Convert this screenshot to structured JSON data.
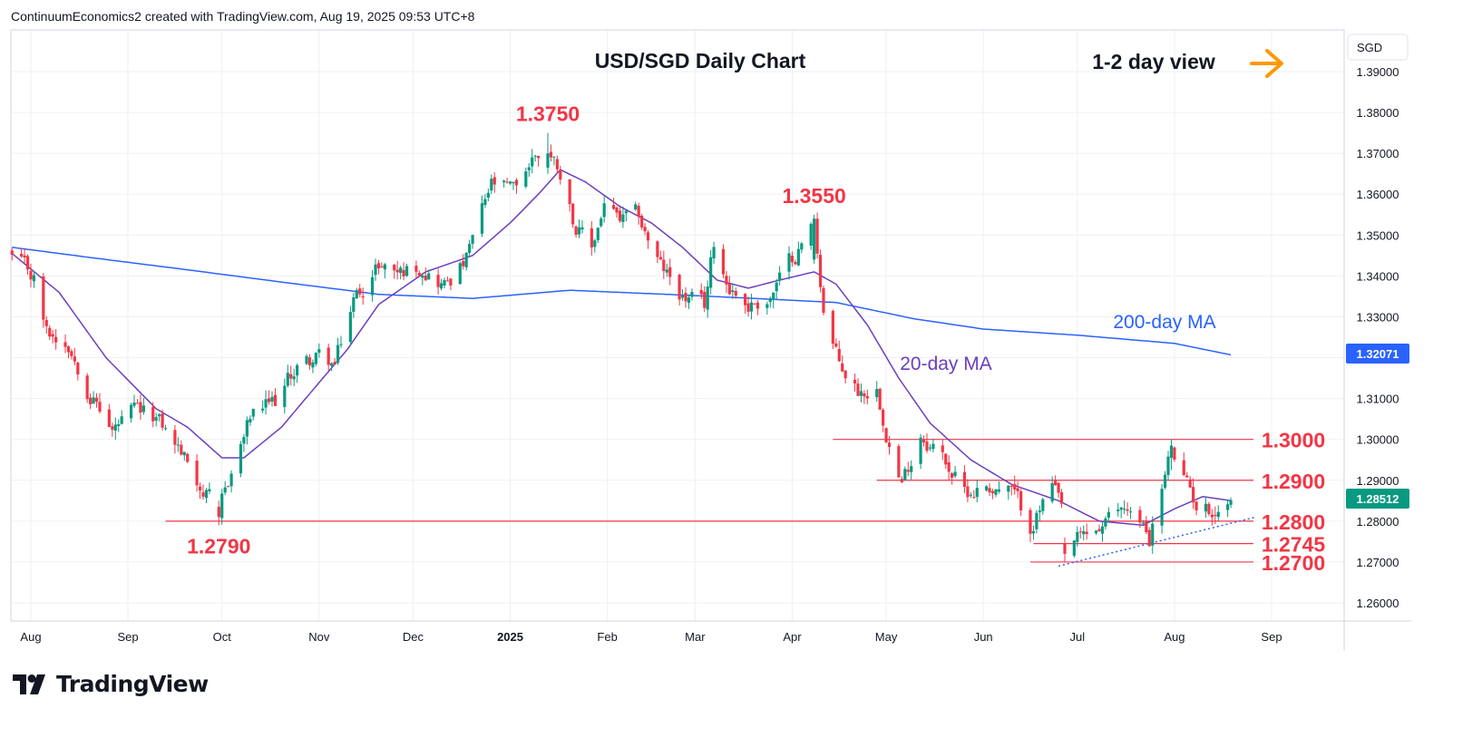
{
  "header": {
    "attribution": "ContinuumEconomics2 created with TradingView.com, Aug 19, 2025 09:53 UTC+8"
  },
  "brand": {
    "name": "TradingView",
    "logo_icon": "tradingview-logo-icon"
  },
  "colors": {
    "up": "#089981",
    "down": "#f23645",
    "ma20": "#6a3fc0",
    "ma200": "#2962ff",
    "level": "#f23645",
    "annotation": "#f23645",
    "arrow": "#ff9800",
    "last_price_bg": "#089981",
    "ma200_price_bg": "#2962ff",
    "grid": "#eef0f3",
    "axis_text": "#131722"
  },
  "chart_data": {
    "type": "candlestick",
    "title": "USD/SGD Daily Chart",
    "view_label": "1-2 day view",
    "view_icon": "arrow-right-icon",
    "currency": "SGD",
    "ylim": [
      1.255,
      1.395
    ],
    "y_ticks": [
      "1.39000",
      "1.38000",
      "1.37000",
      "1.36000",
      "1.35000",
      "1.34000",
      "1.33000",
      "1.32000",
      "1.31000",
      "1.30000",
      "1.29000",
      "1.28000",
      "1.27000",
      "1.26000"
    ],
    "x_ticks": [
      {
        "label": "Aug",
        "date": "2024-08-01",
        "bold": false
      },
      {
        "label": "Sep",
        "date": "2024-09-01",
        "bold": false
      },
      {
        "label": "Oct",
        "date": "2024-10-01",
        "bold": false
      },
      {
        "label": "Nov",
        "date": "2024-11-01",
        "bold": false
      },
      {
        "label": "Dec",
        "date": "2024-12-01",
        "bold": false
      },
      {
        "label": "2025",
        "date": "2025-01-01",
        "bold": true
      },
      {
        "label": "Feb",
        "date": "2025-02-01",
        "bold": false
      },
      {
        "label": "Mar",
        "date": "2025-03-01",
        "bold": false
      },
      {
        "label": "Apr",
        "date": "2025-04-01",
        "bold": false
      },
      {
        "label": "May",
        "date": "2025-05-01",
        "bold": false
      },
      {
        "label": "Jun",
        "date": "2025-06-01",
        "bold": false
      },
      {
        "label": "Jul",
        "date": "2025-07-01",
        "bold": false
      },
      {
        "label": "Aug",
        "date": "2025-08-01",
        "bold": false
      },
      {
        "label": "Sep",
        "date": "2025-09-01",
        "bold": false
      }
    ],
    "last_price": "1.28512",
    "ma200_last": "1.32071",
    "series_labels": {
      "ma20": "20-day MA",
      "ma200": "200-day MA"
    },
    "annotations": [
      {
        "text": "1.3750",
        "date": "2025-01-13",
        "value": 1.375
      },
      {
        "text": "1.3550",
        "date": "2025-04-08",
        "value": 1.355
      },
      {
        "text": "1.2790",
        "date": "2024-09-30",
        "value": 1.279
      }
    ],
    "horizontal_levels": [
      {
        "text": "1.3000",
        "value": 1.3,
        "start_date": "2025-04-14"
      },
      {
        "text": "1.2900",
        "value": 1.29,
        "start_date": "2025-04-28"
      },
      {
        "text": "1.2800",
        "value": 1.28,
        "start_date": "2024-09-13"
      },
      {
        "text": "1.2745",
        "value": 1.2745,
        "start_date": "2025-06-17"
      },
      {
        "text": "1.2700",
        "value": 1.27,
        "start_date": "2025-06-16"
      }
    ],
    "trendline": {
      "start_date": "2025-06-25",
      "start_value": 1.269,
      "end_date": "2025-08-27",
      "end_value": 1.281
    },
    "path_waypoints": [
      [
        "2024-07-26",
        1.3445
      ],
      [
        "2024-08-02",
        1.339
      ],
      [
        "2024-08-06",
        1.326
      ],
      [
        "2024-08-13",
        1.324
      ],
      [
        "2024-08-20",
        1.312
      ],
      [
        "2024-08-27",
        1.302
      ],
      [
        "2024-09-03",
        1.306
      ],
      [
        "2024-09-10",
        1.305
      ],
      [
        "2024-09-17",
        1.298
      ],
      [
        "2024-09-24",
        1.289
      ],
      [
        "2024-09-30",
        1.281
      ],
      [
        "2024-10-04",
        1.292
      ],
      [
        "2024-10-10",
        1.305
      ],
      [
        "2024-10-18",
        1.309
      ],
      [
        "2024-10-25",
        1.318
      ],
      [
        "2024-11-01",
        1.32
      ],
      [
        "2024-11-06",
        1.318
      ],
      [
        "2024-11-12",
        1.334
      ],
      [
        "2024-11-20",
        1.343
      ],
      [
        "2024-11-27",
        1.341
      ],
      [
        "2024-12-04",
        1.343
      ],
      [
        "2024-12-11",
        1.338
      ],
      [
        "2024-12-18",
        1.344
      ],
      [
        "2024-12-26",
        1.362
      ],
      [
        "2025-01-02",
        1.36
      ],
      [
        "2025-01-09",
        1.37
      ],
      [
        "2025-01-13",
        1.371
      ],
      [
        "2025-01-17",
        1.366
      ],
      [
        "2025-01-22",
        1.352
      ],
      [
        "2025-01-27",
        1.346
      ],
      [
        "2025-01-31",
        1.358
      ],
      [
        "2025-02-05",
        1.353
      ],
      [
        "2025-02-11",
        1.354
      ],
      [
        "2025-02-18",
        1.342
      ],
      [
        "2025-02-25",
        1.335
      ],
      [
        "2025-03-04",
        1.332
      ],
      [
        "2025-03-07",
        1.348
      ],
      [
        "2025-03-11",
        1.339
      ],
      [
        "2025-03-18",
        1.333
      ],
      [
        "2025-03-25",
        1.335
      ],
      [
        "2025-04-01",
        1.344
      ],
      [
        "2025-04-08",
        1.353
      ],
      [
        "2025-04-11",
        1.332
      ],
      [
        "2025-04-16",
        1.318
      ],
      [
        "2025-04-22",
        1.312
      ],
      [
        "2025-04-28",
        1.313
      ],
      [
        "2025-05-02",
        1.3
      ],
      [
        "2025-05-06",
        1.289
      ],
      [
        "2025-05-12",
        1.302
      ],
      [
        "2025-05-19",
        1.296
      ],
      [
        "2025-05-26",
        1.287
      ],
      [
        "2025-06-02",
        1.289
      ],
      [
        "2025-06-10",
        1.287
      ],
      [
        "2025-06-16",
        1.279
      ],
      [
        "2025-06-23",
        1.288
      ],
      [
        "2025-06-30",
        1.274
      ],
      [
        "2025-07-04",
        1.276
      ],
      [
        "2025-07-10",
        1.279
      ],
      [
        "2025-07-17",
        1.284
      ],
      [
        "2025-07-24",
        1.276
      ],
      [
        "2025-07-31",
        1.297
      ],
      [
        "2025-08-05",
        1.288
      ],
      [
        "2025-08-08",
        1.284
      ],
      [
        "2025-08-13",
        1.283
      ],
      [
        "2025-08-19",
        1.2851
      ]
    ],
    "ma20_waypoints": [
      [
        "2024-07-26",
        1.3455
      ],
      [
        "2024-08-10",
        1.336
      ],
      [
        "2024-08-25",
        1.32
      ],
      [
        "2024-09-10",
        1.3075
      ],
      [
        "2024-09-20",
        1.303
      ],
      [
        "2024-10-01",
        1.2955
      ],
      [
        "2024-10-08",
        1.2955
      ],
      [
        "2024-10-20",
        1.303
      ],
      [
        "2024-10-31",
        1.313
      ],
      [
        "2024-11-10",
        1.322
      ],
      [
        "2024-11-20",
        1.333
      ],
      [
        "2024-12-05",
        1.341
      ],
      [
        "2024-12-20",
        1.345
      ],
      [
        "2025-01-01",
        1.353
      ],
      [
        "2025-01-10",
        1.36
      ],
      [
        "2025-01-17",
        1.366
      ],
      [
        "2025-01-25",
        1.363
      ],
      [
        "2025-02-05",
        1.357
      ],
      [
        "2025-02-15",
        1.353
      ],
      [
        "2025-02-25",
        1.347
      ],
      [
        "2025-03-08",
        1.339
      ],
      [
        "2025-03-18",
        1.337
      ],
      [
        "2025-03-28",
        1.339
      ],
      [
        "2025-04-08",
        1.341
      ],
      [
        "2025-04-15",
        1.338
      ],
      [
        "2025-04-25",
        1.328
      ],
      [
        "2025-05-05",
        1.315
      ],
      [
        "2025-05-15",
        1.304
      ],
      [
        "2025-05-28",
        1.295
      ],
      [
        "2025-06-10",
        1.289
      ],
      [
        "2025-06-25",
        1.285
      ],
      [
        "2025-07-08",
        1.28
      ],
      [
        "2025-07-22",
        1.279
      ],
      [
        "2025-08-01",
        1.283
      ],
      [
        "2025-08-10",
        1.286
      ],
      [
        "2025-08-19",
        1.285
      ]
    ],
    "ma200_waypoints": [
      [
        "2024-07-26",
        1.347
      ],
      [
        "2024-08-20",
        1.3445
      ],
      [
        "2024-09-20",
        1.3415
      ],
      [
        "2024-10-20",
        1.3385
      ],
      [
        "2024-11-20",
        1.3355
      ],
      [
        "2024-12-20",
        1.3345
      ],
      [
        "2025-01-20",
        1.3365
      ],
      [
        "2025-02-20",
        1.3355
      ],
      [
        "2025-03-20",
        1.3345
      ],
      [
        "2025-04-15",
        1.3335
      ],
      [
        "2025-05-10",
        1.3295
      ],
      [
        "2025-06-01",
        1.327
      ],
      [
        "2025-07-01",
        1.3255
      ],
      [
        "2025-08-01",
        1.3235
      ],
      [
        "2025-08-19",
        1.3207
      ]
    ],
    "pinned_candles": [
      {
        "date": "2024-09-30",
        "open": 1.2835,
        "high": 1.285,
        "low": 1.279,
        "close": 1.281
      },
      {
        "date": "2025-01-13",
        "open": 1.3665,
        "high": 1.375,
        "low": 1.365,
        "close": 1.37
      },
      {
        "date": "2025-04-08",
        "open": 1.344,
        "high": 1.355,
        "low": 1.343,
        "close": 1.354
      },
      {
        "date": "2025-06-27",
        "open": 1.2745,
        "high": 1.276,
        "low": 1.27,
        "close": 1.272
      },
      {
        "date": "2025-07-31",
        "open": 1.2955,
        "high": 1.3,
        "low": 1.2925,
        "close": 1.2985
      },
      {
        "date": "2025-08-19",
        "open": 1.284,
        "high": 1.2858,
        "low": 1.2832,
        "close": 1.2851
      }
    ]
  }
}
